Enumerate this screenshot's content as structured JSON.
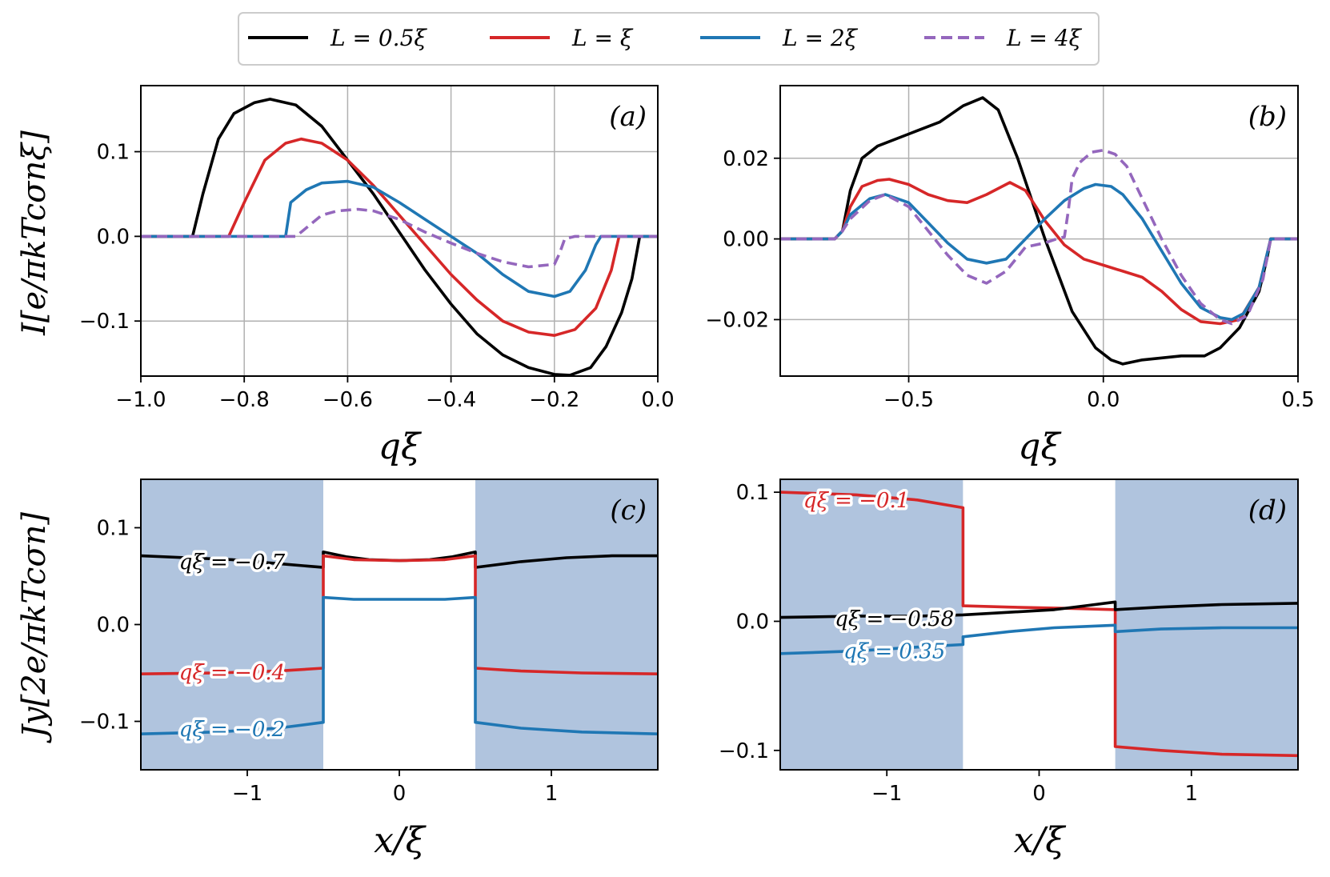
{
  "colors": {
    "black": "#000000",
    "red": "#d62728",
    "blue": "#1f77b4",
    "purple": "#9467bd",
    "shade": "#b0c4de",
    "grid": "#b0b0b0"
  },
  "legend": [
    {
      "label": "L = 0.5ξ",
      "color": "#000000",
      "dash": false
    },
    {
      "label": "L = ξ",
      "color": "#d62728",
      "dash": false
    },
    {
      "label": "L = 2ξ",
      "color": "#1f77b4",
      "dash": false
    },
    {
      "label": "L = 4ξ",
      "color": "#9467bd",
      "dash": true
    }
  ],
  "chart_data": [
    {
      "panel": "(a)",
      "type": "line",
      "xlabel": "qξ",
      "ylabel": "I[e/πkTcσnξ]",
      "xlim": [
        -1.0,
        0.0
      ],
      "ylim": [
        -0.165,
        0.178
      ],
      "xticks": [
        -1.0,
        -0.8,
        -0.6,
        -0.4,
        -0.2,
        0.0
      ],
      "xtick_labels": [
        "−1.0",
        "−0.8",
        "−0.6",
        "−0.4",
        "−0.2",
        "0.0"
      ],
      "yticks": [
        -0.1,
        0.0,
        0.1
      ],
      "ytick_labels": [
        "−0.1",
        "0.0",
        "0.1"
      ],
      "grid": true,
      "series": [
        {
          "name": "L = 0.5ξ",
          "color": "#000000",
          "dash": false,
          "x": [
            -1.0,
            -0.9,
            -0.88,
            -0.85,
            -0.82,
            -0.78,
            -0.75,
            -0.7,
            -0.65,
            -0.6,
            -0.55,
            -0.5,
            -0.45,
            -0.4,
            -0.35,
            -0.3,
            -0.25,
            -0.2,
            -0.17,
            -0.13,
            -0.1,
            -0.07,
            -0.05,
            -0.035,
            -0.02,
            0.0
          ],
          "y": [
            0,
            0,
            0.05,
            0.115,
            0.145,
            0.158,
            0.162,
            0.155,
            0.13,
            0.09,
            0.05,
            0.005,
            -0.04,
            -0.08,
            -0.115,
            -0.14,
            -0.155,
            -0.163,
            -0.164,
            -0.155,
            -0.13,
            -0.09,
            -0.05,
            0,
            0,
            0
          ]
        },
        {
          "name": "L = ξ",
          "color": "#d62728",
          "dash": false,
          "x": [
            -1.0,
            -0.83,
            -0.8,
            -0.76,
            -0.72,
            -0.69,
            -0.65,
            -0.6,
            -0.55,
            -0.5,
            -0.45,
            -0.4,
            -0.35,
            -0.3,
            -0.25,
            -0.2,
            -0.16,
            -0.12,
            -0.09,
            -0.075,
            -0.07,
            0.0
          ],
          "y": [
            0,
            0,
            0.04,
            0.09,
            0.11,
            0.115,
            0.11,
            0.09,
            0.06,
            0.025,
            -0.01,
            -0.045,
            -0.075,
            -0.1,
            -0.113,
            -0.117,
            -0.11,
            -0.085,
            -0.04,
            0,
            0,
            0
          ]
        },
        {
          "name": "L = 2ξ",
          "color": "#1f77b4",
          "dash": false,
          "x": [
            -1.0,
            -0.72,
            -0.71,
            -0.68,
            -0.65,
            -0.6,
            -0.55,
            -0.5,
            -0.45,
            -0.4,
            -0.35,
            -0.3,
            -0.25,
            -0.2,
            -0.17,
            -0.14,
            -0.12,
            -0.11,
            0.0
          ],
          "y": [
            0,
            0,
            0.04,
            0.055,
            0.063,
            0.065,
            0.058,
            0.04,
            0.02,
            0,
            -0.02,
            -0.045,
            -0.065,
            -0.071,
            -0.065,
            -0.04,
            -0.01,
            0,
            0
          ]
        },
        {
          "name": "L = 4ξ",
          "color": "#9467bd",
          "dash": true,
          "x": [
            -1.0,
            -0.7,
            -0.67,
            -0.65,
            -0.62,
            -0.58,
            -0.55,
            -0.5,
            -0.45,
            -0.4,
            -0.35,
            -0.3,
            -0.25,
            -0.2,
            -0.19,
            -0.18,
            -0.16,
            0.0
          ],
          "y": [
            0,
            0,
            0.015,
            0.025,
            0.03,
            0.032,
            0.03,
            0.02,
            0.005,
            -0.008,
            -0.02,
            -0.03,
            -0.036,
            -0.033,
            -0.02,
            -0.003,
            0,
            0
          ]
        }
      ]
    },
    {
      "panel": "(b)",
      "type": "line",
      "xlabel": "qξ",
      "ylabel": "",
      "xlim": [
        -0.83,
        0.5
      ],
      "ylim": [
        -0.034,
        0.038
      ],
      "xticks": [
        -0.5,
        0.0,
        0.5
      ],
      "xtick_labels": [
        "−0.5",
        "0.0",
        "0.5"
      ],
      "yticks": [
        -0.02,
        0.0,
        0.02
      ],
      "ytick_labels": [
        "−0.02",
        "0.00",
        "0.02"
      ],
      "grid": true,
      "series": [
        {
          "name": "L = 0.5ξ",
          "color": "#000000",
          "dash": false,
          "x": [
            -0.83,
            -0.69,
            -0.67,
            -0.65,
            -0.62,
            -0.58,
            -0.5,
            -0.42,
            -0.36,
            -0.31,
            -0.27,
            -0.22,
            -0.15,
            -0.08,
            -0.02,
            0.02,
            0.05,
            0.1,
            0.2,
            0.26,
            0.3,
            0.35,
            0.4,
            0.42,
            0.43,
            0.5
          ],
          "y": [
            0,
            0,
            0.002,
            0.012,
            0.02,
            0.023,
            0.026,
            0.029,
            0.033,
            0.035,
            0.032,
            0.02,
            0.0,
            -0.018,
            -0.027,
            -0.03,
            -0.031,
            -0.03,
            -0.029,
            -0.029,
            -0.027,
            -0.022,
            -0.013,
            -0.005,
            0,
            0
          ]
        },
        {
          "name": "L = ξ",
          "color": "#d62728",
          "dash": false,
          "x": [
            -0.83,
            -0.69,
            -0.67,
            -0.65,
            -0.62,
            -0.58,
            -0.55,
            -0.5,
            -0.45,
            -0.4,
            -0.35,
            -0.3,
            -0.24,
            -0.2,
            -0.15,
            -0.1,
            -0.05,
            0.0,
            0.05,
            0.1,
            0.15,
            0.2,
            0.25,
            0.3,
            0.35,
            0.4,
            0.43,
            0.5
          ],
          "y": [
            0,
            0,
            0.002,
            0.008,
            0.013,
            0.0145,
            0.0148,
            0.0135,
            0.011,
            0.0095,
            0.009,
            0.011,
            0.014,
            0.012,
            0.0045,
            -0.0015,
            -0.005,
            -0.0065,
            -0.008,
            -0.0095,
            -0.013,
            -0.0175,
            -0.0205,
            -0.021,
            -0.02,
            -0.012,
            0,
            0
          ]
        },
        {
          "name": "L = 2ξ",
          "color": "#1f77b4",
          "dash": false,
          "x": [
            -0.83,
            -0.69,
            -0.67,
            -0.65,
            -0.6,
            -0.56,
            -0.5,
            -0.45,
            -0.4,
            -0.35,
            -0.3,
            -0.25,
            -0.2,
            -0.15,
            -0.1,
            -0.05,
            -0.02,
            0.02,
            0.05,
            0.1,
            0.15,
            0.2,
            0.25,
            0.3,
            0.33,
            0.36,
            0.4,
            0.43,
            0.5
          ],
          "y": [
            0,
            0,
            0.002,
            0.006,
            0.01,
            0.011,
            0.009,
            0.004,
            -0.001,
            -0.005,
            -0.006,
            -0.005,
            0.0,
            0.005,
            0.0095,
            0.0125,
            0.0135,
            0.013,
            0.011,
            0.005,
            -0.003,
            -0.011,
            -0.017,
            -0.0195,
            -0.02,
            -0.0185,
            -0.012,
            0,
            0
          ]
        },
        {
          "name": "L = 4ξ",
          "color": "#9467bd",
          "dash": true,
          "x": [
            -0.83,
            -0.69,
            -0.67,
            -0.65,
            -0.6,
            -0.56,
            -0.5,
            -0.45,
            -0.4,
            -0.35,
            -0.3,
            -0.25,
            -0.2,
            -0.15,
            -0.12,
            -0.1,
            -0.09,
            -0.08,
            -0.06,
            -0.03,
            0.0,
            0.03,
            0.06,
            0.1,
            0.15,
            0.2,
            0.25,
            0.3,
            0.33,
            0.37,
            0.41,
            0.43,
            0.5
          ],
          "y": [
            0,
            0,
            0.002,
            0.005,
            0.0095,
            0.011,
            0.008,
            0.002,
            -0.004,
            -0.009,
            -0.011,
            -0.008,
            -0.002,
            -0.001,
            0.0,
            0.0005,
            0.007,
            0.015,
            0.019,
            0.0215,
            0.022,
            0.021,
            0.018,
            0.01,
            0.0,
            -0.009,
            -0.016,
            -0.02,
            -0.021,
            -0.019,
            -0.01,
            0,
            0
          ]
        }
      ]
    },
    {
      "panel": "(c)",
      "type": "line",
      "xlabel": "x/ξ",
      "ylabel": "Jy[2e/πkTcσn]",
      "xlim": [
        -1.7,
        1.7
      ],
      "ylim": [
        -0.15,
        0.15
      ],
      "xticks": [
        -1,
        0,
        1
      ],
      "xtick_labels": [
        "−1",
        "0",
        "1"
      ],
      "yticks": [
        -0.1,
        0.0,
        0.1
      ],
      "ytick_labels": [
        "−0.1",
        "0.0",
        "0.1"
      ],
      "grid": false,
      "shaded_regions": [
        [
          -1.7,
          -0.5
        ],
        [
          0.5,
          1.7
        ]
      ],
      "series": [
        {
          "name": "qξ = −0.7",
          "color": "#000000",
          "dash": false,
          "x": [
            -1.7,
            -1.4,
            -1.1,
            -0.8,
            -0.5,
            -0.5,
            -0.35,
            -0.2,
            0.0,
            0.2,
            0.35,
            0.5,
            0.5,
            0.8,
            1.1,
            1.4,
            1.7
          ],
          "y": [
            0.071,
            0.069,
            0.067,
            0.063,
            0.059,
            0.075,
            0.07,
            0.067,
            0.066,
            0.067,
            0.07,
            0.075,
            0.059,
            0.065,
            0.069,
            0.071,
            0.071
          ]
        },
        {
          "name": "qξ = −0.4",
          "color": "#d62728",
          "dash": false,
          "x": [
            -1.7,
            -1.2,
            -0.8,
            -0.5,
            -0.5,
            -0.3,
            0.0,
            0.3,
            0.5,
            0.5,
            0.8,
            1.2,
            1.7
          ],
          "y": [
            -0.051,
            -0.05,
            -0.048,
            -0.045,
            0.071,
            0.067,
            0.066,
            0.067,
            0.071,
            -0.045,
            -0.048,
            -0.05,
            -0.051
          ]
        },
        {
          "name": "qξ = −0.2",
          "color": "#1f77b4",
          "dash": false,
          "x": [
            -1.7,
            -1.2,
            -0.8,
            -0.5,
            -0.5,
            -0.3,
            0.0,
            0.3,
            0.5,
            0.5,
            0.8,
            1.2,
            1.7
          ],
          "y": [
            -0.113,
            -0.111,
            -0.107,
            -0.101,
            0.028,
            0.026,
            0.026,
            0.026,
            0.028,
            -0.101,
            -0.107,
            -0.111,
            -0.113
          ]
        }
      ],
      "inline_labels": [
        {
          "text": "qξ = −0.7",
          "color": "#000000",
          "x": -1.1,
          "y": 0.065
        },
        {
          "text": "qξ = −0.4",
          "color": "#d62728",
          "x": -1.1,
          "y": -0.049
        },
        {
          "text": "qξ = −0.2",
          "color": "#1f77b4",
          "x": -1.1,
          "y": -0.108
        }
      ]
    },
    {
      "panel": "(d)",
      "type": "line",
      "xlabel": "x/ξ",
      "ylabel": "",
      "xlim": [
        -1.7,
        1.7
      ],
      "ylim": [
        -0.115,
        0.11
      ],
      "xticks": [
        -1,
        0,
        1
      ],
      "xtick_labels": [
        "−1",
        "0",
        "1"
      ],
      "yticks": [
        -0.1,
        0.0,
        0.1
      ],
      "ytick_labels": [
        "−0.1",
        "0.0",
        "0.1"
      ],
      "grid": false,
      "shaded_regions": [
        [
          -1.7,
          -0.5
        ],
        [
          0.5,
          1.7
        ]
      ],
      "series": [
        {
          "name": "qξ = −0.1",
          "color": "#d62728",
          "dash": false,
          "x": [
            -1.7,
            -1.2,
            -0.8,
            -0.5,
            -0.5,
            -0.2,
            0.2,
            0.5,
            0.5,
            0.8,
            1.2,
            1.7
          ],
          "y": [
            0.1,
            0.098,
            0.094,
            0.088,
            0.012,
            0.011,
            0.01,
            0.009,
            -0.097,
            -0.1,
            -0.103,
            -0.104
          ]
        },
        {
          "name": "qξ = −0.58",
          "color": "#000000",
          "dash": false,
          "x": [
            -1.7,
            -1.2,
            -0.8,
            -0.5,
            -0.5,
            -0.2,
            0.1,
            0.3,
            0.5,
            0.5,
            0.8,
            1.2,
            1.7
          ],
          "y": [
            0.003,
            0.004,
            0.004,
            0.005,
            0.005,
            0.007,
            0.009,
            0.012,
            0.015,
            0.009,
            0.011,
            0.013,
            0.014
          ]
        },
        {
          "name": "qξ = 0.35",
          "color": "#1f77b4",
          "dash": false,
          "x": [
            -1.7,
            -1.2,
            -0.8,
            -0.5,
            -0.5,
            -0.2,
            0.1,
            0.3,
            0.5,
            0.5,
            0.8,
            1.2,
            1.7
          ],
          "y": [
            -0.025,
            -0.023,
            -0.02,
            -0.018,
            -0.012,
            -0.008,
            -0.005,
            -0.004,
            -0.003,
            -0.008,
            -0.006,
            -0.005,
            -0.005
          ]
        }
      ],
      "inline_labels": [
        {
          "text": "qξ = −0.1",
          "color": "#d62728",
          "x": -1.2,
          "y": 0.094
        },
        {
          "text": "qξ = −0.58",
          "color": "#000000",
          "x": -0.95,
          "y": 0.002
        },
        {
          "text": "qξ = 0.35",
          "color": "#1f77b4",
          "x": -0.95,
          "y": -0.023
        }
      ]
    }
  ]
}
